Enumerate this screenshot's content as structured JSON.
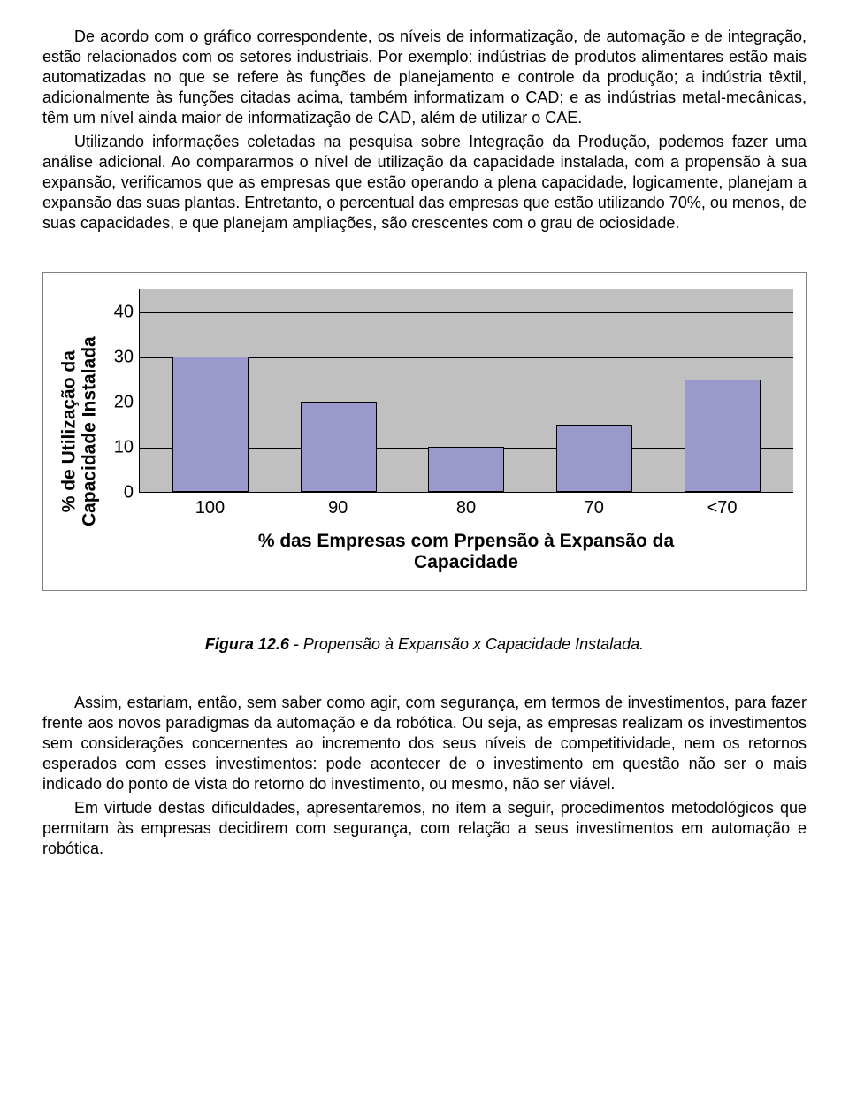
{
  "paragraphs": {
    "p1": "De acordo com o gráfico correspondente, os níveis de informatização, de automação e de integração, estão relacionados com os setores industriais. Por exemplo: indústrias de produtos alimentares estão mais automatizadas no que se refere às funções de planejamento e controle da produção; a indústria têxtil, adicionalmente às funções citadas acima, também informatizam o CAD; e as indústrias metal-mecânicas, têm um nível ainda maior de informatização de CAD, além de utilizar o CAE.",
    "p2": "Utilizando informações coletadas na pesquisa sobre Integração da Produção, podemos fazer uma análise adicional. Ao compararmos o nível de utilização da capacidade instalada, com a propensão à sua expansão, verificamos que as empresas que estão operando a plena capacidade, logicamente, planejam a expansão das suas plantas. Entretanto, o percentual das empresas que estão utilizando 70%,  ou menos, de suas capacidades,  e que planejam ampliações, são crescentes com o grau de ociosidade.",
    "p3": "Assim, estariam, então, sem saber como agir, com segurança, em termos de investimentos, para fazer frente aos novos paradigmas da automação e da robótica. Ou seja, as empresas realizam os investimentos sem considerações concernentes ao incremento dos seus níveis de competitividade, nem os retornos esperados com esses investimentos: pode acontecer de o investimento em questão não ser o mais indicado do ponto de vista do retorno do investimento, ou mesmo, não ser viável.",
    "p4": "Em virtude destas dificuldades, apresentaremos, no item a seguir, procedimentos metodológicos que permitam às empresas decidirem com segurança, com relação a seus investimentos em automação e robótica."
  },
  "chart": {
    "type": "bar",
    "ylabel_line1": "% de Utilização da",
    "ylabel_line2": "Capacidade Instalada",
    "xlabel_line1": "% das Empresas com Prpensão à Expansão da",
    "xlabel_line2": "Capacidade",
    "categories": [
      "100",
      "90",
      "80",
      "70",
      "<70"
    ],
    "values": [
      30,
      20,
      10,
      15,
      25
    ],
    "ymax": 45,
    "yticks": [
      0,
      10,
      20,
      30,
      40
    ],
    "bar_color": "#9999cc",
    "plot_bg": "#c0c0c0",
    "grid_color": "#000000",
    "border_color": "#808080",
    "bar_border": "#000000",
    "tick_fontsize": 20,
    "label_fontsize": 21
  },
  "caption": {
    "bold": "Figura 12.6",
    "rest": " - Propensão à Expansão x Capacidade Instalada."
  }
}
